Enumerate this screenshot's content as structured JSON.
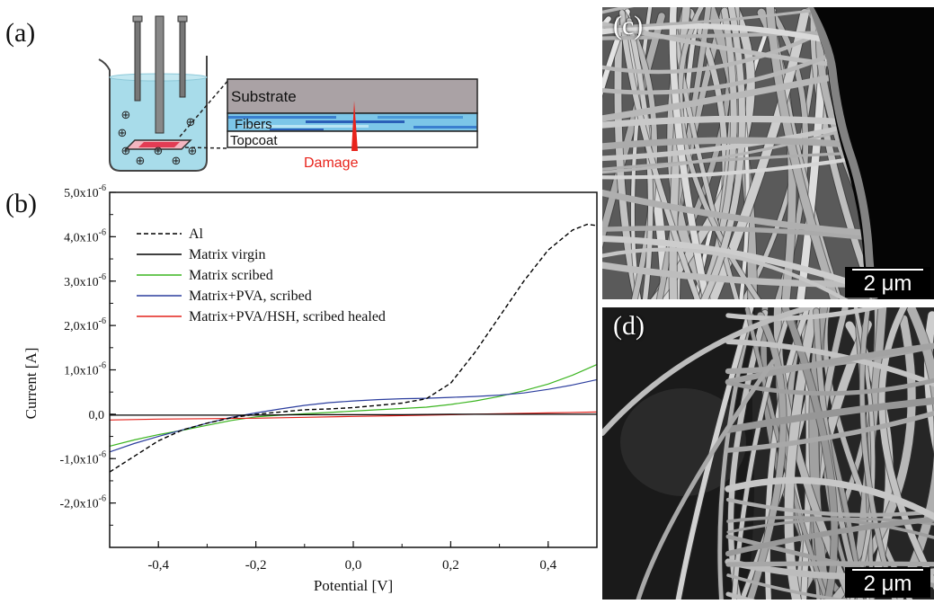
{
  "panels": {
    "a": {
      "label": "(a)",
      "layers": [
        "Substrate",
        "Fibers",
        "Topcoat"
      ],
      "damage_label": "Damage",
      "ion_symbol": "⊕"
    },
    "b": {
      "label": "(b)"
    },
    "c": {
      "label": "(c)",
      "scale_bar": "2 μm"
    },
    "d": {
      "label": "(d)",
      "scale_bar": "2 μm"
    }
  },
  "colors": {
    "al": "#000000",
    "virgin": "#000000",
    "scribed": "#3cb521",
    "pva": "#2c3e9e",
    "healed": "#e3231d",
    "substrate": "#aaa2a5",
    "electrolyte": "#a8dcea",
    "damage": "#e8241c"
  },
  "chart_data": {
    "type": "line",
    "title": "",
    "xlabel": "Potential [V]",
    "ylabel": "Current [A]",
    "xlim": [
      -0.5,
      0.5
    ],
    "ylim": [
      -3e-06,
      5e-06
    ],
    "xticks": [
      -0.4,
      -0.2,
      0.0,
      0.2,
      0.4
    ],
    "xtick_labels": [
      "-0,4",
      "-0,2",
      "0,0",
      "0,2",
      "0,4"
    ],
    "yticks": [
      {
        "value": 5e-06,
        "mantissa": "5,0x10",
        "exp": "-6"
      },
      {
        "value": 4e-06,
        "mantissa": "4,0x10",
        "exp": "-6"
      },
      {
        "value": 3e-06,
        "mantissa": "3,0x10",
        "exp": "-6"
      },
      {
        "value": 2e-06,
        "mantissa": "2,0x10",
        "exp": "-6"
      },
      {
        "value": 1e-06,
        "mantissa": "1,0x10",
        "exp": "-6"
      },
      {
        "value": 0.0,
        "mantissa": "0,0",
        "exp": ""
      },
      {
        "value": -1e-06,
        "mantissa": "-1,0x10",
        "exp": "-6"
      },
      {
        "value": -2e-06,
        "mantissa": "-2,0x10",
        "exp": "-6"
      }
    ],
    "legend_position": "top-left",
    "series": [
      {
        "name": "Al",
        "key": "al",
        "dash": true,
        "x": [
          -0.5,
          -0.45,
          -0.4,
          -0.35,
          -0.3,
          -0.25,
          -0.2,
          -0.15,
          -0.1,
          -0.05,
          0.0,
          0.05,
          0.1,
          0.15,
          0.2,
          0.25,
          0.3,
          0.35,
          0.4,
          0.45,
          0.48,
          0.5
        ],
        "y": [
          -1.3e-06,
          -9.5e-07,
          -6e-07,
          -3.5e-07,
          -2e-07,
          -8e-08,
          0.0,
          5e-08,
          1e-07,
          1.2e-07,
          1.5e-07,
          2e-07,
          2.5e-07,
          3.5e-07,
          7e-07,
          1.4e-06,
          2.2e-06,
          3e-06,
          3.7e-06,
          4.15e-06,
          4.28e-06,
          4.25e-06
        ]
      },
      {
        "name": "Matrix virgin",
        "key": "virgin",
        "dash": false,
        "x": [
          -0.5,
          -0.4,
          -0.3,
          -0.2,
          -0.1,
          0.0,
          0.1,
          0.2,
          0.3,
          0.4,
          0.5
        ],
        "y": [
          -2e-08,
          -2e-08,
          -2e-08,
          -2e-08,
          -1e-08,
          -1e-08,
          -1e-08,
          0.0,
          0.0,
          0.0,
          0.0
        ]
      },
      {
        "name": "Matrix scribed",
        "key": "scribed",
        "dash": false,
        "x": [
          -0.5,
          -0.45,
          -0.4,
          -0.35,
          -0.3,
          -0.25,
          -0.2,
          -0.15,
          -0.1,
          -0.05,
          0.0,
          0.05,
          0.1,
          0.15,
          0.2,
          0.25,
          0.3,
          0.35,
          0.4,
          0.45,
          0.5
        ],
        "y": [
          -7.2e-07,
          -5.8e-07,
          -4.6e-07,
          -3.6e-07,
          -2.5e-07,
          -1.4e-07,
          -6e-08,
          -2e-08,
          1e-08,
          4e-08,
          7e-08,
          1e-07,
          1.3e-07,
          1.6e-07,
          2.2e-07,
          3e-07,
          4e-07,
          5.3e-07,
          6.8e-07,
          8.8e-07,
          1.12e-06
        ]
      },
      {
        "name": "Matrix+PVA, scribed",
        "key": "pva",
        "dash": false,
        "x": [
          -0.5,
          -0.45,
          -0.4,
          -0.35,
          -0.3,
          -0.25,
          -0.2,
          -0.15,
          -0.1,
          -0.05,
          0.0,
          0.05,
          0.1,
          0.15,
          0.2,
          0.25,
          0.3,
          0.35,
          0.4,
          0.45,
          0.5
        ],
        "y": [
          -8.5e-07,
          -6.6e-07,
          -5e-07,
          -3.5e-07,
          -2e-07,
          -7e-08,
          3e-08,
          1.2e-07,
          2e-07,
          2.6e-07,
          3e-07,
          3.3e-07,
          3.5e-07,
          3.6e-07,
          3.8e-07,
          4e-07,
          4.3e-07,
          4.8e-07,
          5.6e-07,
          6.6e-07,
          7.8e-07
        ]
      },
      {
        "name": "Matrix+PVA/HSH, scribed healed",
        "key": "healed",
        "dash": false,
        "x": [
          -0.5,
          -0.4,
          -0.3,
          -0.2,
          -0.1,
          0.0,
          0.1,
          0.2,
          0.3,
          0.4,
          0.5
        ],
        "y": [
          -1.3e-07,
          -1.1e-07,
          -1e-07,
          -9e-08,
          -7e-08,
          -5e-08,
          -3e-08,
          -1e-08,
          1e-08,
          3e-08,
          5e-08
        ]
      }
    ]
  }
}
